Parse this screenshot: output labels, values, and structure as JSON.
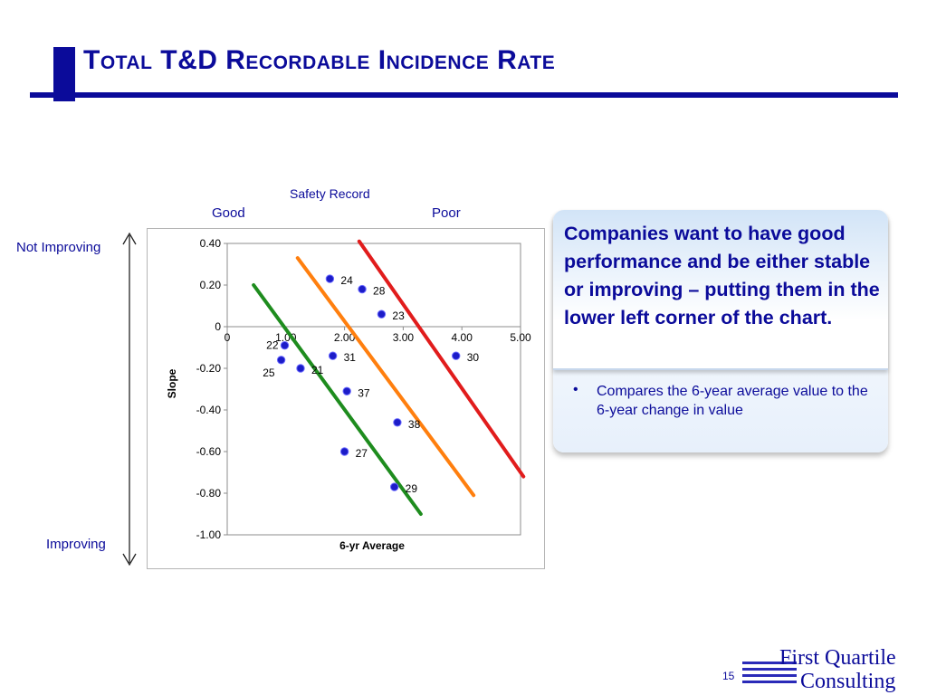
{
  "slide": {
    "title": "Total T&D Recordable Incidence Rate",
    "page_number": "15"
  },
  "annotations": {
    "safety_record": "Safety Record",
    "good": "Good",
    "poor": "Poor",
    "not_improving": "Not Improving",
    "improving": "Improving"
  },
  "callout": {
    "headline": "Companies want to have good performance and be either stable or improving – putting them in the lower left corner of the chart.",
    "bullet": "Compares the 6-year average value to the 6-year change in value"
  },
  "logo": {
    "line1": "First Quartile",
    "line2": "Consulting"
  },
  "colors": {
    "brand": "#0b0b9a",
    "point": "#1c1cc8",
    "line_green": "#1e8c1e",
    "line_orange": "#ff7f0e",
    "line_red": "#e11c1c"
  },
  "chart_data": {
    "type": "scatter",
    "xlabel": "6-yr Average",
    "ylabel": "Slope",
    "xlim": [
      0,
      5
    ],
    "ylim": [
      -1.0,
      0.4
    ],
    "x_ticks": [
      {
        "value": 0,
        "label": "0"
      },
      {
        "value": 1,
        "label": "1.00"
      },
      {
        "value": 2,
        "label": "2.00"
      },
      {
        "value": 3,
        "label": "3.00"
      },
      {
        "value": 4,
        "label": "4.00"
      },
      {
        "value": 5,
        "label": "5.00"
      }
    ],
    "y_ticks": [
      {
        "value": 0.4,
        "label": "0.40"
      },
      {
        "value": 0.2,
        "label": "0.20"
      },
      {
        "value": 0,
        "label": "0"
      },
      {
        "value": -0.2,
        "label": "-0.20"
      },
      {
        "value": -0.4,
        "label": "-0.40"
      },
      {
        "value": -0.6,
        "label": "-0.60"
      },
      {
        "value": -0.8,
        "label": "-0.80"
      },
      {
        "value": -1.0,
        "label": "-1.00"
      }
    ],
    "points": [
      {
        "label": "24",
        "x": 1.75,
        "y": 0.23
      },
      {
        "label": "28",
        "x": 2.3,
        "y": 0.18
      },
      {
        "label": "23",
        "x": 2.63,
        "y": 0.06
      },
      {
        "label": "22",
        "x": 0.98,
        "y": -0.09
      },
      {
        "label": "25",
        "x": 0.92,
        "y": -0.16
      },
      {
        "label": "21",
        "x": 1.25,
        "y": -0.2
      },
      {
        "label": "31",
        "x": 1.8,
        "y": -0.14
      },
      {
        "label": "30",
        "x": 3.9,
        "y": -0.14
      },
      {
        "label": "37",
        "x": 2.04,
        "y": -0.31
      },
      {
        "label": "38",
        "x": 2.9,
        "y": -0.46
      },
      {
        "label": "27",
        "x": 2.0,
        "y": -0.6
      },
      {
        "label": "29",
        "x": 2.85,
        "y": -0.77
      }
    ],
    "reference_lines": [
      {
        "color": "green",
        "x1": 0.45,
        "y1": 0.2,
        "x2": 3.3,
        "y2": -0.9
      },
      {
        "color": "orange",
        "x1": 1.2,
        "y1": 0.33,
        "x2": 4.2,
        "y2": -0.81
      },
      {
        "color": "red",
        "x1": 2.25,
        "y1": 0.41,
        "x2": 5.05,
        "y2": -0.72
      }
    ]
  }
}
